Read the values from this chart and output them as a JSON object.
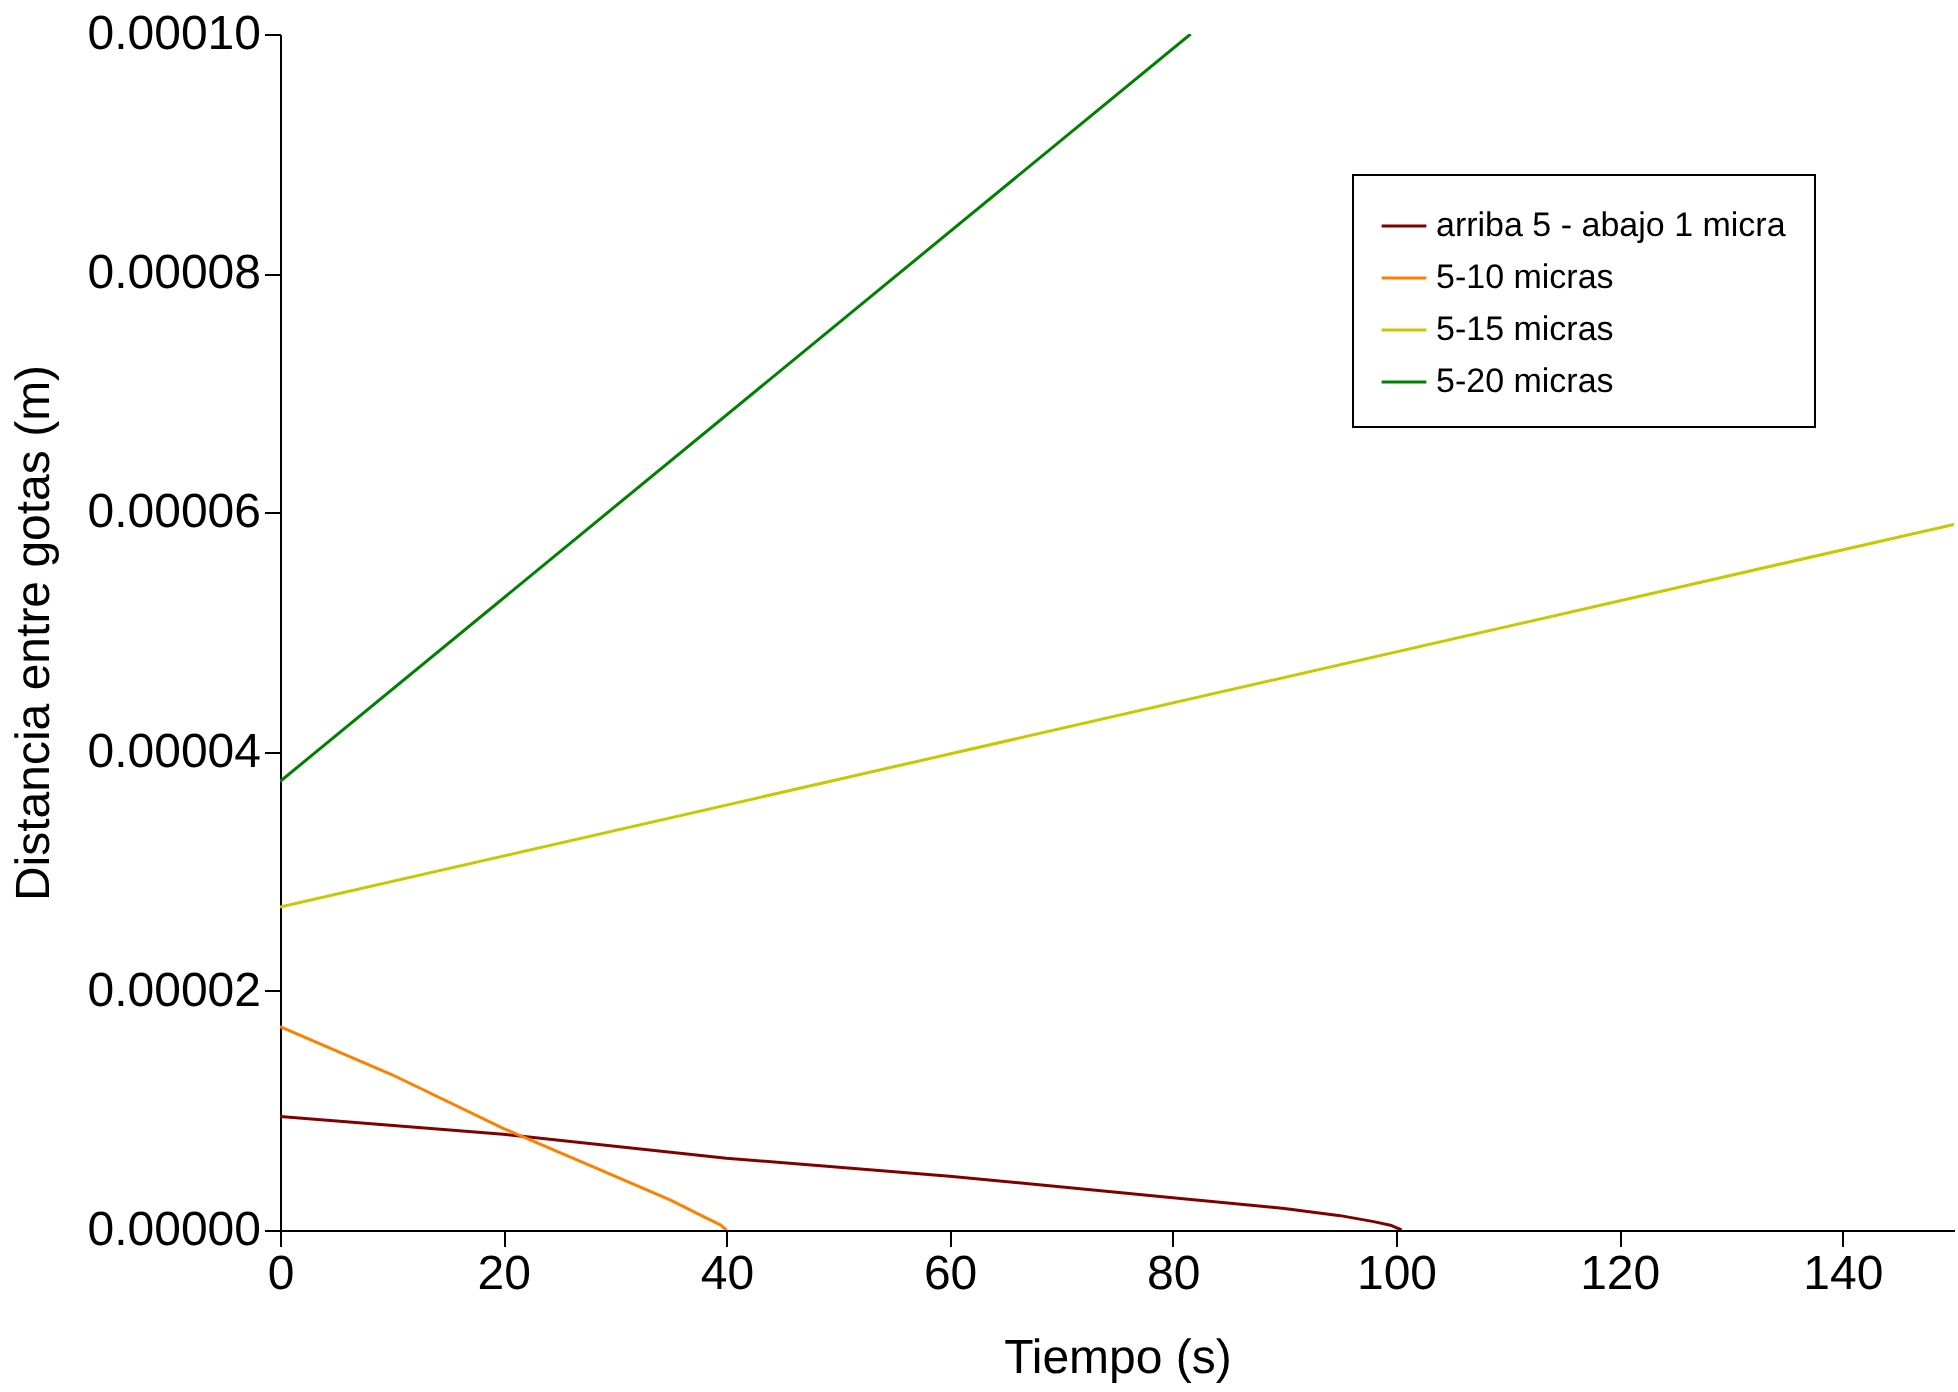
{
  "chart_data": {
    "type": "line",
    "xlabel": "Tiempo (s)",
    "ylabel": "Distancia entre gotas (m)",
    "xlim": [
      0,
      150
    ],
    "xticks": [
      0,
      20,
      40,
      60,
      80,
      100,
      120,
      140
    ],
    "ylim": [
      0,
      0.0001
    ],
    "yticks": [
      {
        "value": 0,
        "label": "0.00000"
      },
      {
        "value": 2e-05,
        "label": "0.00002"
      },
      {
        "value": 4e-05,
        "label": "0.00004"
      },
      {
        "value": 6e-05,
        "label": "0.00006"
      },
      {
        "value": 8e-05,
        "label": "0.00008"
      },
      {
        "value": 0.0001,
        "label": "0.00010"
      }
    ],
    "grid": false,
    "legend": "top right",
    "marker": "none",
    "line_style": "solid",
    "series": [
      {
        "name": "arriba 5 - abajo 1 micra",
        "color": "#800000",
        "x": [
          0,
          20,
          40,
          60,
          80,
          90,
          95,
          98,
          99.5,
          100.5
        ],
        "values": [
          9.5e-06,
          8e-06,
          6e-06,
          4.5e-06,
          2.7e-06,
          1.8e-06,
          1.2e-06,
          7e-07,
          4e-07,
          0.0
        ]
      },
      {
        "name": "5-10 micras",
        "color": "#ff8000",
        "x": [
          0,
          10,
          20,
          30,
          35,
          38,
          39.5,
          40
        ],
        "values": [
          1.7e-05,
          1.3e-05,
          8.5e-06,
          4.5e-06,
          2.5e-06,
          1.1e-06,
          4e-07,
          0.0
        ]
      },
      {
        "name": "5-15 micras",
        "color": "#c8c800",
        "x": [
          0,
          150
        ],
        "values": [
          2.7e-05,
          5.9e-05
        ]
      },
      {
        "name": "5-20 micras",
        "color": "#008000",
        "x": [
          0,
          81.6
        ],
        "values": [
          3.75e-05,
          0.0001
        ]
      }
    ]
  }
}
